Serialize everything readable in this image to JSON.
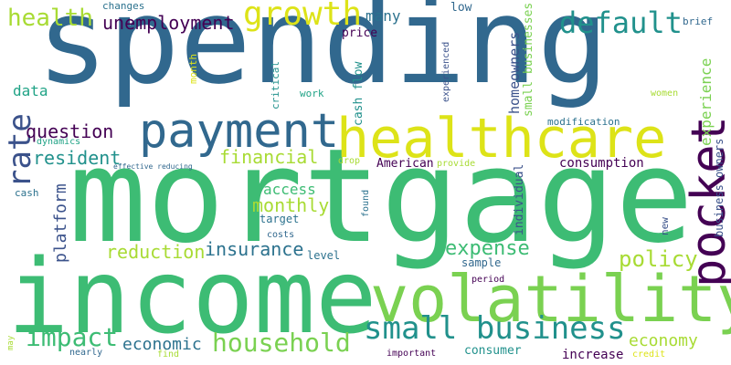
{
  "palette": {
    "dark_purple": "#440154",
    "indigo": "#3b528b",
    "blue": "#31688e",
    "teal_blue": "#2c728e",
    "teal": "#21918c",
    "green_teal": "#20a386",
    "green": "#3dbc74",
    "light_green": "#7ad151",
    "yellow_green": "#a8db34",
    "yellow": "#dde318"
  },
  "words": [
    {
      "text": "spending",
      "color": "#31688e"
    },
    {
      "text": "mortgage",
      "color": "#3dbc74"
    },
    {
      "text": "income",
      "color": "#3dbc74"
    },
    {
      "text": "volatility",
      "color": "#7ad151"
    },
    {
      "text": "healthcare",
      "color": "#dde318"
    },
    {
      "text": "payment",
      "color": "#31688e"
    },
    {
      "text": "pocket",
      "color": "#440154"
    },
    {
      "text": "small business",
      "color": "#21918c"
    },
    {
      "text": "household",
      "color": "#7ad151"
    },
    {
      "text": "growth",
      "color": "#dde318"
    },
    {
      "text": "default",
      "color": "#21918c"
    },
    {
      "text": "health",
      "color": "#a8db34"
    },
    {
      "text": "unemployment",
      "color": "#440154"
    },
    {
      "text": "impact",
      "color": "#3dbc74"
    },
    {
      "text": "rate",
      "color": "#3b528b"
    },
    {
      "text": "policy",
      "color": "#a8db34"
    },
    {
      "text": "insurance",
      "color": "#2c728e"
    },
    {
      "text": "expense",
      "color": "#3dbc74"
    },
    {
      "text": "reduction",
      "color": "#a8db34"
    },
    {
      "text": "economic",
      "color": "#2c728e"
    },
    {
      "text": "economy",
      "color": "#a8db34"
    },
    {
      "text": "financial",
      "color": "#a8db34"
    },
    {
      "text": "monthly",
      "color": "#a8db34"
    },
    {
      "text": "access",
      "color": "#3dbc74"
    },
    {
      "text": "experience",
      "color": "#7ad151"
    },
    {
      "text": "resident",
      "color": "#21918c"
    },
    {
      "text": "question",
      "color": "#440154"
    },
    {
      "text": "platform",
      "color": "#3b528b"
    },
    {
      "text": "many",
      "color": "#2c728e"
    },
    {
      "text": "data",
      "color": "#20a386"
    },
    {
      "text": "homeowners",
      "color": "#3b528b"
    },
    {
      "text": "small businesses",
      "color": "#7ad151"
    },
    {
      "text": "business owners",
      "color": "#3b528b"
    },
    {
      "text": "consumption",
      "color": "#440154"
    },
    {
      "text": "consumer",
      "color": "#21918c"
    },
    {
      "text": "increase",
      "color": "#440154"
    },
    {
      "text": "individual",
      "color": "#3b528b"
    },
    {
      "text": "American",
      "color": "#440154"
    },
    {
      "text": "cash flow",
      "color": "#21918c"
    },
    {
      "text": "price",
      "color": "#440154"
    },
    {
      "text": "low",
      "color": "#31688e"
    },
    {
      "text": "changes",
      "color": "#2c728e"
    },
    {
      "text": "month",
      "color": "#dde318"
    },
    {
      "text": "critical",
      "color": "#21918c"
    },
    {
      "text": "work",
      "color": "#20a386"
    },
    {
      "text": "experienced",
      "color": "#3b528b"
    },
    {
      "text": "modification",
      "color": "#2c728e"
    },
    {
      "text": "brief",
      "color": "#31688e"
    },
    {
      "text": "women",
      "color": "#a8db34"
    },
    {
      "text": "new",
      "color": "#3b528b"
    },
    {
      "text": "dynamics",
      "color": "#20a386"
    },
    {
      "text": "effective reducing",
      "color": "#31688e"
    },
    {
      "text": "drop",
      "color": "#a8db34"
    },
    {
      "text": "provide",
      "color": "#a8db34"
    },
    {
      "text": "found",
      "color": "#2c728e"
    },
    {
      "text": "cash",
      "color": "#2c728e"
    },
    {
      "text": "target",
      "color": "#2c728e"
    },
    {
      "text": "costs",
      "color": "#31688e"
    },
    {
      "text": "level",
      "color": "#2c728e"
    },
    {
      "text": "sample",
      "color": "#31688e"
    },
    {
      "text": "period",
      "color": "#440154"
    },
    {
      "text": "may",
      "color": "#a8db34"
    },
    {
      "text": "nearly",
      "color": "#31688e"
    },
    {
      "text": "find",
      "color": "#a8db34"
    },
    {
      "text": "important",
      "color": "#440154"
    },
    {
      "text": "credit",
      "color": "#dde318"
    }
  ]
}
